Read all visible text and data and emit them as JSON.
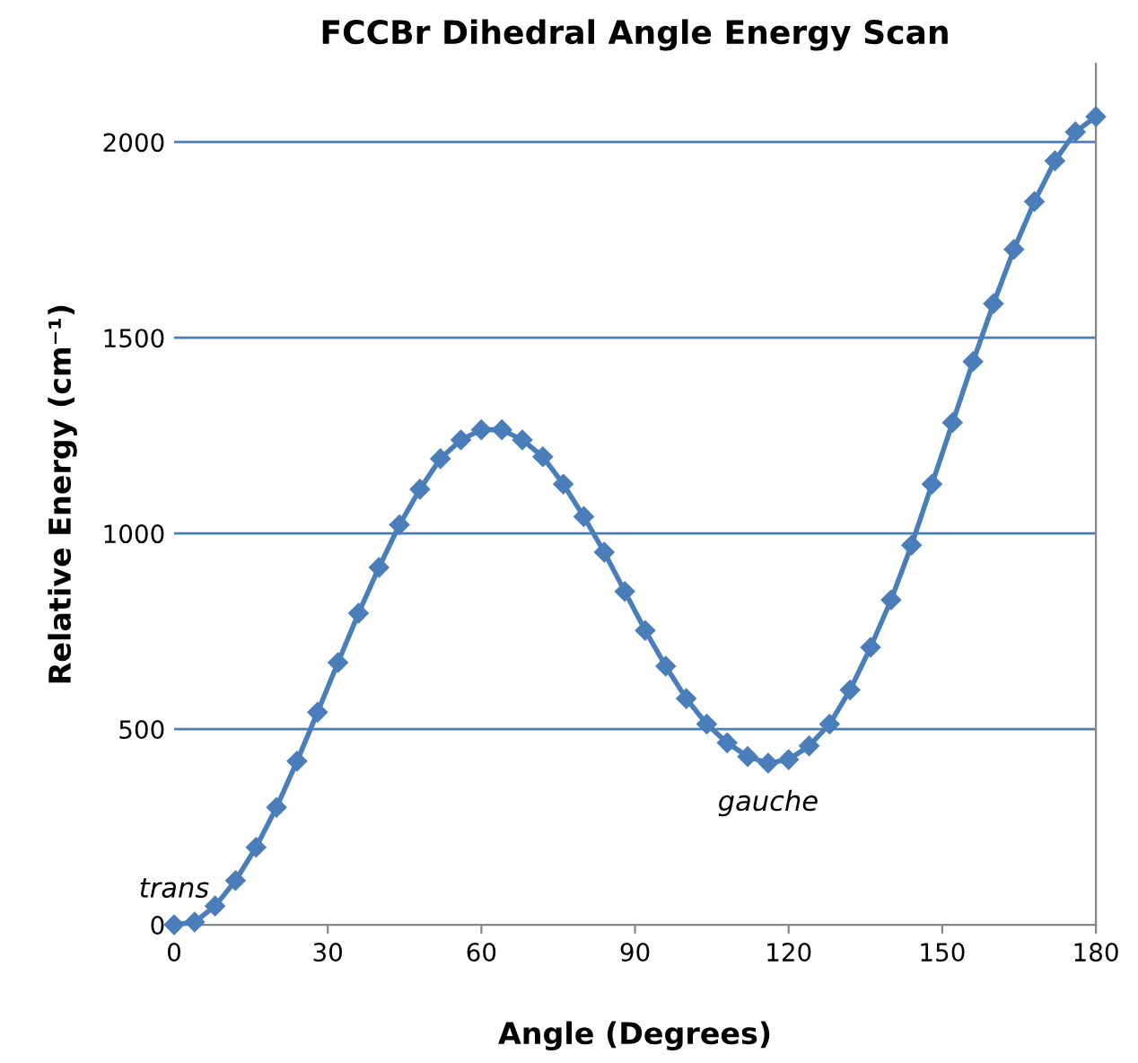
{
  "chart_data": {
    "type": "line",
    "title": "FCCBr Dihedral Angle Energy Scan",
    "xlabel": "Angle (Degrees)",
    "ylabel": "Relative Energy (cm⁻¹)",
    "x": [
      0,
      4,
      8,
      12,
      16,
      20,
      24,
      28,
      32,
      36,
      40,
      44,
      48,
      52,
      56,
      60,
      64,
      68,
      72,
      76,
      80,
      84,
      88,
      92,
      96,
      100,
      104,
      108,
      112,
      116,
      120,
      124,
      128,
      132,
      136,
      140,
      144,
      148,
      152,
      156,
      160,
      164,
      168,
      172,
      176,
      180
    ],
    "series": [
      {
        "color": "#4a7ebb",
        "values": [
          0,
          7,
          48,
          113,
          198,
          300,
          418,
          543,
          670,
          796,
          913,
          1022,
          1113,
          1191,
          1239,
          1265,
          1265,
          1239,
          1196,
          1126,
          1043,
          952,
          852,
          752,
          661,
          578,
          513,
          465,
          430,
          413,
          422,
          457,
          513,
          600,
          709,
          830,
          970,
          1126,
          1283,
          1439,
          1587,
          1726,
          1848,
          1952,
          2026,
          2065
        ]
      }
    ],
    "xlim": [
      0,
      180
    ],
    "xticks": [
      0,
      30,
      60,
      90,
      120,
      150,
      180
    ],
    "ylim": [
      0,
      2200
    ],
    "yticks": [
      0,
      500,
      1000,
      1500,
      2000
    ],
    "grid": "y",
    "marker": "diamond",
    "line_style": "solid",
    "annotations": [
      {
        "text": "trans",
        "x": 0,
        "y": 0
      },
      {
        "text": "gauche",
        "x": 116,
        "y": 413
      }
    ]
  }
}
